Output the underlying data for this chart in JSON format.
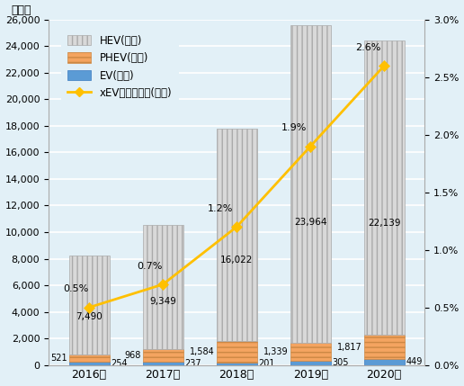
{
  "years": [
    "2016年",
    "2017年",
    "2018年",
    "2019年",
    "2020年"
  ],
  "hev": [
    7490,
    9349,
    16022,
    23964,
    22139
  ],
  "phev": [
    521,
    968,
    1584,
    1339,
    1817
  ],
  "ev": [
    254,
    237,
    201,
    305,
    449
  ],
  "ratio": [
    0.5,
    0.7,
    1.2,
    1.9,
    2.6
  ],
  "hev_color": "#d9d9d9",
  "hev_hatch": "|||",
  "hev_edgecolor": "#aaaaaa",
  "phev_color": "#f4a460",
  "phev_hatch": "---",
  "phev_edgecolor": "#cc8844",
  "ev_color": "#5b9bd5",
  "ev_edgecolor": "#3a7abf",
  "line_color": "#ffc000",
  "line_marker": "D",
  "background_color": "#e2f0f7",
  "grid_color": "#ffffff",
  "left_ylim": [
    0,
    26000
  ],
  "left_yticks": [
    0,
    2000,
    4000,
    6000,
    8000,
    10000,
    12000,
    14000,
    16000,
    18000,
    20000,
    22000,
    24000,
    26000
  ],
  "right_ylim": [
    0,
    3.0
  ],
  "right_yticks": [
    0.0,
    0.5,
    1.0,
    1.5,
    2.0,
    2.5,
    3.0
  ],
  "title_left": "（台）",
  "legend_hev": "HEV(左軸)",
  "legend_phev": "PHEV(左軸)",
  "legend_ev": "EV(左軸)",
  "legend_line": "xEV／国内販売(右軸)",
  "bar_width": 0.55,
  "figsize": [
    5.16,
    4.29
  ],
  "dpi": 100
}
